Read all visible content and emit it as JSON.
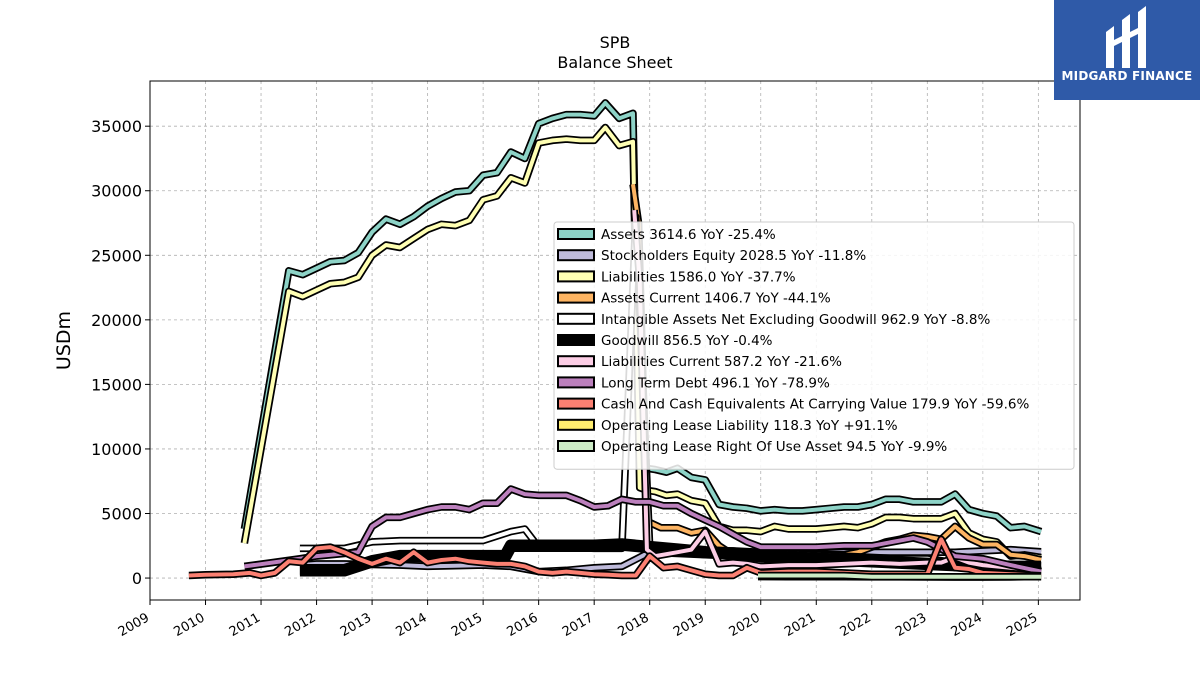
{
  "logo": {
    "text": "MIDGARD FINANCE"
  },
  "chart_data": {
    "type": "line",
    "title": "SPB",
    "subtitle": "Balance  Sheet",
    "ylabel": "USDm",
    "xlabel": "",
    "xlim": [
      2009.0,
      2025.75
    ],
    "ylim": [
      -1700,
      38500
    ],
    "xticks": [
      2009,
      2010,
      2011,
      2012,
      2013,
      2014,
      2015,
      2016,
      2017,
      2018,
      2019,
      2020,
      2021,
      2022,
      2023,
      2024,
      2025
    ],
    "yticks": [
      0,
      5000,
      10000,
      15000,
      20000,
      25000,
      30000,
      35000
    ],
    "grid": true,
    "legend_position": "center-right",
    "series": [
      {
        "name": "Assets  3614.6 YoY -25.4%",
        "color": "#8dd3c7",
        "x": [
          2010.7,
          2011.5,
          2011.75,
          2012.0,
          2012.25,
          2012.5,
          2012.75,
          2013.0,
          2013.25,
          2013.5,
          2013.75,
          2014.0,
          2014.25,
          2014.5,
          2014.75,
          2015.0,
          2015.25,
          2015.5,
          2015.75,
          2016.0,
          2016.25,
          2016.5,
          2016.75,
          2017.0,
          2017.2,
          2017.45,
          2017.7,
          2017.82,
          2017.95,
          2018.1,
          2018.3,
          2018.5,
          2018.75,
          2019.0,
          2019.25,
          2019.5,
          2019.75,
          2020.0,
          2020.25,
          2020.5,
          2020.75,
          2021.0,
          2021.25,
          2021.5,
          2021.75,
          2022.0,
          2022.25,
          2022.5,
          2022.75,
          2023.0,
          2023.25,
          2023.5,
          2023.75,
          2024.0,
          2024.25,
          2024.5,
          2024.75,
          2025.05
        ],
        "values": [
          3800,
          23800,
          23500,
          24000,
          24500,
          24600,
          25200,
          26800,
          27800,
          27400,
          28000,
          28800,
          29400,
          29900,
          30000,
          31200,
          31400,
          33000,
          32500,
          35200,
          35600,
          35900,
          35900,
          35800,
          36800,
          35600,
          36000,
          9000,
          8500,
          8400,
          8200,
          8500,
          7800,
          7600,
          5700,
          5500,
          5400,
          5200,
          5300,
          5200,
          5200,
          5300,
          5400,
          5500,
          5500,
          5700,
          6100,
          6100,
          5900,
          5900,
          5900,
          6500,
          5300,
          5000,
          4800,
          3900,
          4000,
          3600
        ]
      },
      {
        "name": "Stockholders Equity  2028.5 YoY -11.8%",
        "color": "#bebada",
        "x": [
          2011.7,
          2012.0,
          2012.5,
          2013.0,
          2013.5,
          2014.0,
          2014.5,
          2015.0,
          2015.5,
          2016.0,
          2016.5,
          2017.0,
          2017.5,
          2018.0,
          2018.5,
          2019.0,
          2019.5,
          2020.0,
          2020.5,
          2021.0,
          2021.5,
          2022.0,
          2022.5,
          2023.0,
          2023.5,
          2024.0,
          2024.5,
          2025.05
        ],
        "values": [
          1000,
          1100,
          1100,
          1050,
          1000,
          900,
          950,
          1000,
          900,
          500,
          600,
          800,
          900,
          2000,
          1900,
          1800,
          1800,
          1900,
          1900,
          1900,
          2000,
          2000,
          2000,
          2000,
          2000,
          2100,
          2200,
          2030
        ]
      },
      {
        "name": "Liabilities  1586.0 YoY -37.7%",
        "color": "#ffffb3",
        "x": [
          2010.7,
          2011.5,
          2011.75,
          2012.0,
          2012.25,
          2012.5,
          2012.75,
          2013.0,
          2013.25,
          2013.5,
          2013.75,
          2014.0,
          2014.25,
          2014.5,
          2014.75,
          2015.0,
          2015.25,
          2015.5,
          2015.75,
          2016.0,
          2016.25,
          2016.5,
          2016.75,
          2017.0,
          2017.2,
          2017.45,
          2017.7,
          2017.82,
          2017.95,
          2018.1,
          2018.3,
          2018.5,
          2018.75,
          2019.0,
          2019.25,
          2019.5,
          2019.75,
          2020.0,
          2020.25,
          2020.5,
          2020.75,
          2021.0,
          2021.25,
          2021.5,
          2021.75,
          2022.0,
          2022.25,
          2022.5,
          2022.75,
          2023.0,
          2023.25,
          2023.5,
          2023.75,
          2024.0,
          2024.25,
          2024.5,
          2024.75,
          2025.05
        ],
        "values": [
          2700,
          22200,
          21800,
          22300,
          22800,
          22900,
          23300,
          25000,
          25800,
          25600,
          26300,
          27000,
          27400,
          27300,
          27700,
          29300,
          29600,
          31000,
          30600,
          33700,
          33900,
          34000,
          33900,
          33900,
          34900,
          33500,
          33800,
          7000,
          6800,
          6700,
          6400,
          6500,
          6000,
          5800,
          4000,
          3700,
          3700,
          3600,
          4000,
          3800,
          3800,
          3800,
          3900,
          4000,
          3900,
          4200,
          4700,
          4700,
          4600,
          4600,
          4600,
          5000,
          3500,
          3000,
          2800,
          1700,
          1800,
          1590
        ]
      },
      {
        "name": "Assets Current  1406.7 YoY -44.1%",
        "color": "#fdb462",
        "x": [
          2017.7,
          2017.8,
          2017.95,
          2018.2,
          2018.5,
          2018.75,
          2019.0,
          2019.25,
          2019.5,
          2019.75,
          2020.0,
          2020.5,
          2021.0,
          2021.5,
          2021.75,
          2022.0,
          2022.25,
          2022.5,
          2022.75,
          2023.0,
          2023.25,
          2023.5,
          2023.75,
          2024.0,
          2024.25,
          2024.5,
          2024.75,
          2025.05
        ],
        "values": [
          30500,
          27500,
          4400,
          3900,
          3900,
          3500,
          3700,
          2500,
          1800,
          1800,
          1700,
          1700,
          1800,
          1800,
          2000,
          2400,
          2800,
          3000,
          3300,
          3200,
          3000,
          4000,
          3100,
          2600,
          2600,
          1800,
          1700,
          1410
        ]
      },
      {
        "name": "Intangible Assets Net Excluding Goodwill  962.9 YoY -8.8%",
        "color": "#ffffff",
        "x": [
          2011.7,
          2012.0,
          2012.5,
          2013.0,
          2013.5,
          2014.0,
          2014.5,
          2015.0,
          2015.5,
          2015.75,
          2016.0,
          2016.5,
          2017.0,
          2017.5,
          2017.75,
          2018.0,
          2018.5,
          2019.0,
          2019.5,
          2020.0,
          2020.5,
          2021.0,
          2021.5,
          2022.0,
          2022.5,
          2023.0,
          2023.5,
          2024.0,
          2024.5,
          2025.05
        ],
        "values": [
          2300,
          2300,
          2300,
          2800,
          2900,
          2900,
          2900,
          2900,
          3600,
          3800,
          2400,
          2400,
          2300,
          2300,
          28000,
          2400,
          2300,
          2100,
          2100,
          2000,
          1900,
          1800,
          1700,
          1600,
          1500,
          1500,
          1200,
          1100,
          1000,
          960
        ]
      },
      {
        "name": "Goodwill  856.5 YoY -0.4%",
        "color": "#000000",
        "x": [
          2011.7,
          2012.0,
          2012.5,
          2013.0,
          2013.5,
          2014.0,
          2014.5,
          2015.0,
          2015.4,
          2015.5,
          2016.0,
          2016.5,
          2017.0,
          2017.5,
          2018.0,
          2018.5,
          2019.0,
          2019.5,
          2020.0,
          2020.5,
          2021.0,
          2021.5,
          2022.0,
          2022.5,
          2023.0,
          2023.5,
          2024.0,
          2024.5,
          2025.05
        ],
        "values": [
          600,
          600,
          600,
          1300,
          1700,
          1700,
          1700,
          1700,
          1700,
          2500,
          2500,
          2500,
          2500,
          2600,
          2400,
          2200,
          2000,
          1900,
          1700,
          1600,
          1500,
          1400,
          1300,
          1200,
          1100,
          1000,
          900,
          870,
          860
        ]
      },
      {
        "name": "Liabilities Current  587.2 YoY -21.6%",
        "color": "#fccde5",
        "x": [
          2017.72,
          2017.82,
          2017.95,
          2018.1,
          2018.5,
          2018.75,
          2019.0,
          2019.25,
          2019.5,
          2019.75,
          2020.0,
          2020.5,
          2021.0,
          2021.5,
          2022.0,
          2022.5,
          2023.0,
          2023.25,
          2023.5,
          2023.75,
          2024.0,
          2024.5,
          2025.05
        ],
        "values": [
          28500,
          23000,
          2200,
          1700,
          2000,
          2200,
          3600,
          1100,
          1200,
          1100,
          900,
          1000,
          1000,
          1100,
          1200,
          1100,
          1200,
          1200,
          1600,
          1200,
          1000,
          800,
          590
        ]
      },
      {
        "name": "Long Term Debt  496.1 YoY -78.9%",
        "color": "#bc80bd",
        "x": [
          2010.7,
          2011.2,
          2011.7,
          2012.0,
          2012.5,
          2012.75,
          2013.0,
          2013.25,
          2013.5,
          2013.75,
          2014.0,
          2014.25,
          2014.5,
          2014.75,
          2015.0,
          2015.25,
          2015.5,
          2015.75,
          2016.0,
          2016.5,
          2016.75,
          2017.0,
          2017.25,
          2017.5,
          2017.75,
          2018.0,
          2018.25,
          2018.5,
          2018.75,
          2019.0,
          2019.25,
          2019.5,
          2019.75,
          2020.0,
          2020.5,
          2021.0,
          2021.5,
          2022.0,
          2022.5,
          2022.75,
          2023.0,
          2023.5,
          2024.0,
          2024.5,
          2025.05
        ],
        "values": [
          900,
          1200,
          1500,
          1700,
          1900,
          2000,
          4000,
          4700,
          4700,
          5000,
          5300,
          5500,
          5500,
          5300,
          5800,
          5800,
          6900,
          6500,
          6400,
          6400,
          6000,
          5500,
          5600,
          6100,
          5900,
          5900,
          5600,
          5600,
          5000,
          4500,
          4000,
          3400,
          2800,
          2400,
          2400,
          2400,
          2500,
          2500,
          2900,
          3100,
          2800,
          1700,
          1500,
          1000,
          500
        ]
      },
      {
        "name": "Cash And Cash Equivalents At Carrying Value  179.9 YoY -59.6%",
        "color": "#fb8072",
        "x": [
          2009.7,
          2010.0,
          2010.5,
          2010.8,
          2011.0,
          2011.25,
          2011.5,
          2011.75,
          2012.0,
          2012.25,
          2012.5,
          2012.75,
          2013.0,
          2013.25,
          2013.5,
          2013.75,
          2014.0,
          2014.25,
          2014.5,
          2014.75,
          2015.0,
          2015.25,
          2015.5,
          2015.75,
          2016.0,
          2016.25,
          2016.5,
          2016.75,
          2017.0,
          2017.25,
          2017.5,
          2017.75,
          2018.0,
          2018.25,
          2018.5,
          2018.75,
          2019.0,
          2019.25,
          2019.5,
          2019.75,
          2020.0,
          2020.5,
          2021.0,
          2021.5,
          2022.0,
          2022.5,
          2023.0,
          2023.25,
          2023.5,
          2023.75,
          2024.0,
          2024.5,
          2025.05
        ],
        "values": [
          200,
          250,
          300,
          400,
          200,
          400,
          1300,
          1200,
          2300,
          2400,
          2000,
          1500,
          1100,
          1500,
          1200,
          2000,
          1200,
          1400,
          1500,
          1300,
          1200,
          1100,
          1100,
          900,
          500,
          400,
          500,
          400,
          300,
          250,
          200,
          200,
          1700,
          800,
          900,
          600,
          300,
          200,
          200,
          800,
          400,
          500,
          500,
          400,
          300,
          300,
          300,
          3000,
          800,
          700,
          400,
          300,
          180
        ]
      },
      {
        "name": "Operating Lease Liability  118.3 YoY +91.1%",
        "color": "#ffed6f",
        "x": [
          2019.95,
          2020.5,
          2021.0,
          2021.5,
          2022.0,
          2022.5,
          2023.0,
          2023.5,
          2024.0,
          2024.5,
          2025.05
        ],
        "values": [
          110,
          100,
          100,
          100,
          90,
          90,
          80,
          70,
          70,
          80,
          118
        ]
      },
      {
        "name": "Operating Lease Right Of Use Asset  94.5 YoY -9.9%",
        "color": "#ccebc5",
        "x": [
          2019.95,
          2020.5,
          2021.0,
          2021.5,
          2022.0,
          2022.5,
          2023.0,
          2023.5,
          2024.0,
          2024.5,
          2025.05
        ],
        "values": [
          200,
          200,
          200,
          200,
          100,
          100,
          100,
          100,
          100,
          100,
          95
        ]
      }
    ]
  }
}
